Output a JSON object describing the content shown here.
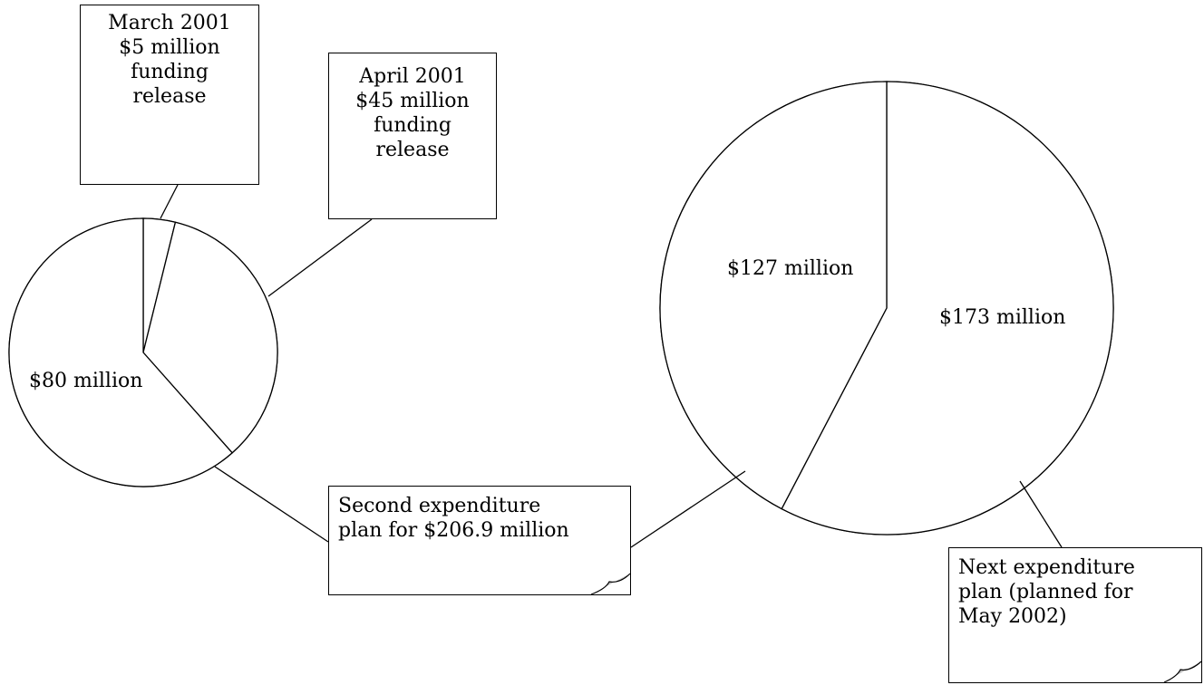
{
  "callouts": {
    "march": {
      "lines": [
        "March 2001",
        "$5 million",
        "funding",
        "release"
      ]
    },
    "april": {
      "lines": [
        "April 2001",
        "$45 million",
        "funding",
        "release"
      ]
    },
    "second_plan": {
      "lines": [
        "Second expenditure",
        "plan for $206.9 million"
      ]
    },
    "next_plan": {
      "lines": [
        "Next expenditure",
        "plan (planned for",
        "May 2002)"
      ]
    }
  },
  "chart_data": [
    {
      "type": "pie",
      "slices": [
        {
          "label": "March 2001 $5 million funding release",
          "value": 5
        },
        {
          "label": "April 2001 $45 million funding release",
          "value": 45
        },
        {
          "label": "$80 million",
          "value": 80
        }
      ]
    },
    {
      "type": "pie",
      "slices": [
        {
          "label": "$173 million",
          "value": 173
        },
        {
          "label": "$127 million",
          "value": 127
        }
      ]
    }
  ],
  "labels": {
    "small_pie_80": "$80 million",
    "big_pie_127": "$127 million",
    "big_pie_173": "$173 million"
  },
  "colors": {
    "stroke": "#000000",
    "fill": "#ffffff",
    "fold_fill": "#c0c0c0"
  }
}
